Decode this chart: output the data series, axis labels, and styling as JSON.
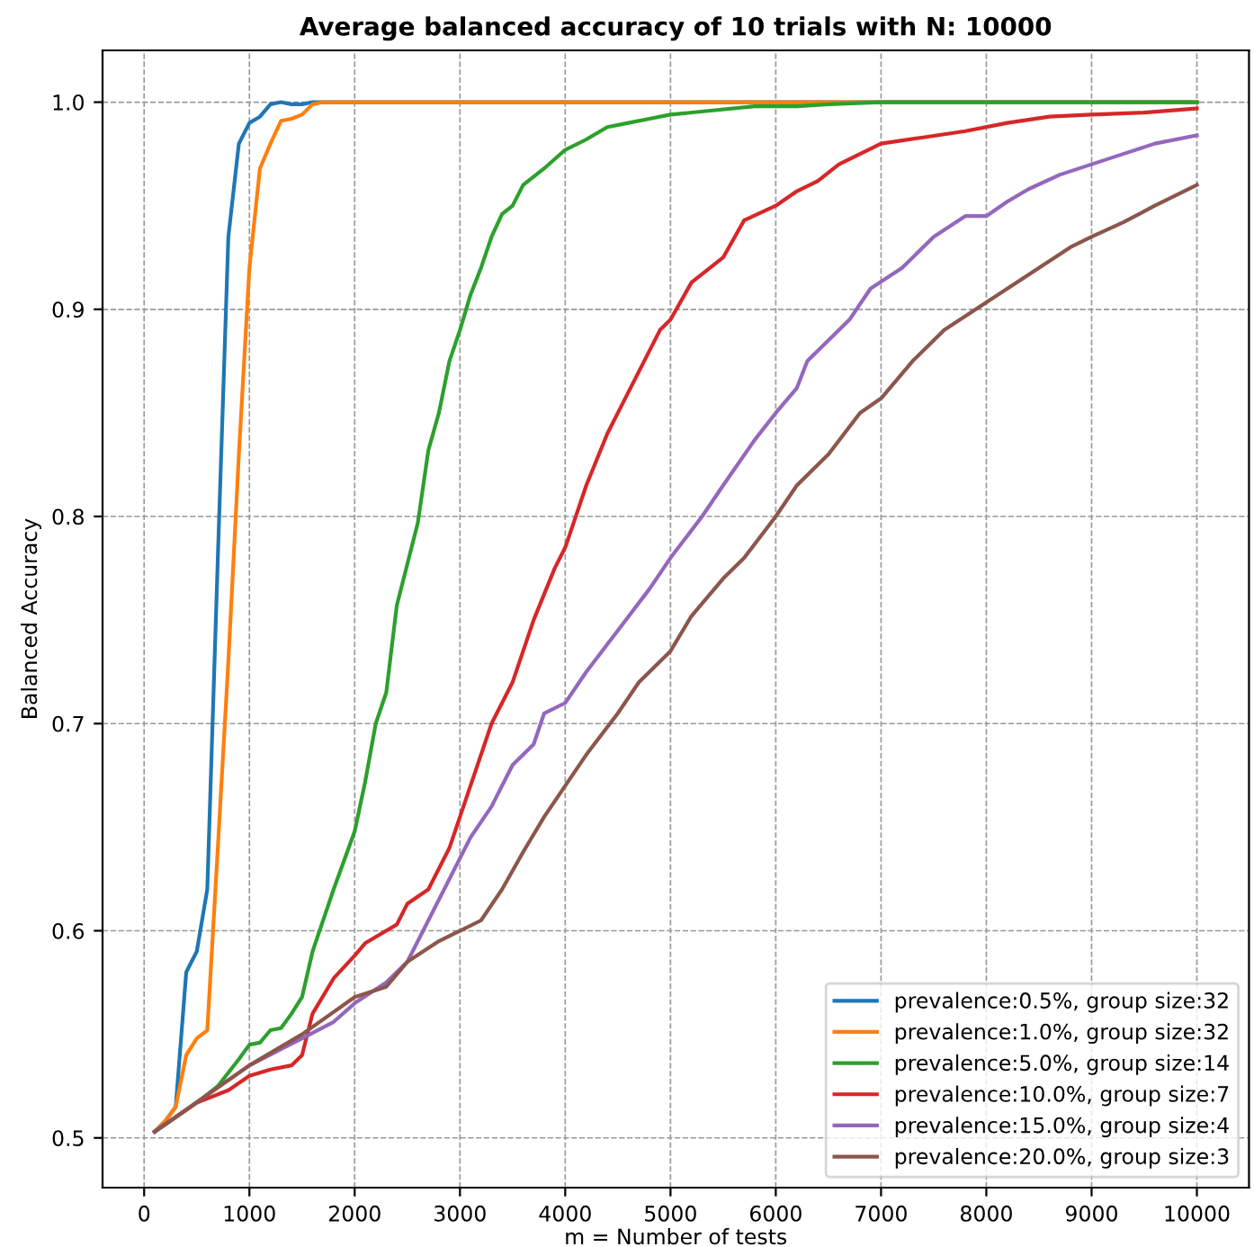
{
  "chart_data": {
    "type": "line",
    "title": "Average balanced accuracy of 10 trials with N: 10000",
    "xlabel": "m = Number of tests",
    "ylabel": "Balanced Accuracy",
    "xlim": [
      -395,
      10495
    ],
    "ylim": [
      0.476,
      1.025
    ],
    "xticks": [
      0,
      1000,
      2000,
      3000,
      4000,
      5000,
      6000,
      7000,
      8000,
      9000,
      10000
    ],
    "yticks": [
      {
        "value": 0.5,
        "label": "0.5"
      },
      {
        "value": 0.6,
        "label": "0.6"
      },
      {
        "value": 0.7,
        "label": "0.7"
      },
      {
        "value": 0.8,
        "label": "0.8"
      },
      {
        "value": 0.9,
        "label": "0.9"
      },
      {
        "value": 1.0,
        "label": "1.0"
      }
    ],
    "grid": true,
    "legend": "bottom right",
    "line_style": "solid",
    "marker": "none",
    "series": [
      {
        "name": "prevalence:0.5%, group size:32",
        "color": "#1f77b4",
        "x": [
          100,
          200,
          300,
          400,
          500,
          600,
          700,
          800,
          900,
          1000,
          1100,
          1200,
          1300,
          1400,
          1500,
          1600,
          1700,
          10000
        ],
        "values": [
          0.503,
          0.508,
          0.515,
          0.58,
          0.59,
          0.62,
          0.78,
          0.935,
          0.98,
          0.99,
          0.993,
          0.999,
          1.0,
          0.999,
          0.999,
          1.0,
          1.0,
          1.0
        ]
      },
      {
        "name": "prevalence:1.0%, group size:32",
        "color": "#ff7f0e",
        "x": [
          100,
          200,
          300,
          400,
          500,
          600,
          700,
          800,
          900,
          1000,
          1100,
          1200,
          1300,
          1400,
          1500,
          1600,
          1700,
          10000
        ],
        "values": [
          0.503,
          0.508,
          0.515,
          0.54,
          0.548,
          0.552,
          0.64,
          0.73,
          0.83,
          0.92,
          0.968,
          0.98,
          0.991,
          0.992,
          0.994,
          0.999,
          1.0,
          1.0
        ]
      },
      {
        "name": "prevalence:5.0%, group size:14",
        "color": "#2ca02c",
        "x": [
          100,
          300,
          500,
          700,
          900,
          1000,
          1100,
          1200,
          1300,
          1400,
          1500,
          1600,
          1800,
          2000,
          2100,
          2200,
          2300,
          2400,
          2600,
          2700,
          2800,
          2900,
          3000,
          3100,
          3200,
          3300,
          3400,
          3500,
          3600,
          3800,
          4000,
          4200,
          4400,
          4600,
          4800,
          5000,
          5400,
          5800,
          6200,
          6500,
          7000,
          10000
        ],
        "values": [
          0.503,
          0.51,
          0.517,
          0.525,
          0.538,
          0.545,
          0.546,
          0.552,
          0.553,
          0.56,
          0.568,
          0.59,
          0.62,
          0.648,
          0.672,
          0.7,
          0.715,
          0.757,
          0.797,
          0.832,
          0.85,
          0.875,
          0.89,
          0.907,
          0.92,
          0.935,
          0.946,
          0.95,
          0.96,
          0.968,
          0.977,
          0.982,
          0.988,
          0.99,
          0.992,
          0.994,
          0.996,
          0.998,
          0.998,
          0.999,
          1.0,
          1.0
        ]
      },
      {
        "name": "prevalence:10.0%, group size:7",
        "color": "#d62728",
        "x": [
          100,
          500,
          800,
          1000,
          1200,
          1400,
          1500,
          1600,
          1800,
          2000,
          2100,
          2300,
          2400,
          2500,
          2700,
          2900,
          3000,
          3200,
          3300,
          3500,
          3700,
          3900,
          4000,
          4200,
          4400,
          4500,
          4700,
          4900,
          5000,
          5200,
          5500,
          5700,
          6000,
          6200,
          6400,
          6600,
          6800,
          7000,
          7400,
          7800,
          8200,
          8600,
          9000,
          9500,
          10000
        ],
        "values": [
          0.503,
          0.517,
          0.523,
          0.53,
          0.533,
          0.535,
          0.54,
          0.56,
          0.577,
          0.588,
          0.594,
          0.6,
          0.603,
          0.613,
          0.62,
          0.64,
          0.655,
          0.685,
          0.7,
          0.72,
          0.75,
          0.775,
          0.785,
          0.815,
          0.84,
          0.85,
          0.87,
          0.89,
          0.895,
          0.913,
          0.925,
          0.943,
          0.95,
          0.957,
          0.962,
          0.97,
          0.975,
          0.98,
          0.983,
          0.986,
          0.99,
          0.993,
          0.994,
          0.995,
          0.997
        ]
      },
      {
        "name": "prevalence:15.0%, group size:4",
        "color": "#9467bd",
        "x": [
          100,
          1000,
          1500,
          1800,
          2000,
          2300,
          2500,
          2700,
          2900,
          3100,
          3300,
          3500,
          3700,
          3800,
          4000,
          4200,
          4500,
          4800,
          5000,
          5300,
          5500,
          5800,
          6000,
          6200,
          6300,
          6500,
          6700,
          6900,
          7200,
          7500,
          7800,
          8000,
          8200,
          8400,
          8700,
          9000,
          9300,
          9600,
          10000
        ],
        "values": [
          0.503,
          0.535,
          0.548,
          0.556,
          0.565,
          0.575,
          0.585,
          0.605,
          0.625,
          0.645,
          0.66,
          0.68,
          0.69,
          0.705,
          0.71,
          0.725,
          0.745,
          0.765,
          0.78,
          0.8,
          0.815,
          0.837,
          0.85,
          0.862,
          0.875,
          0.885,
          0.895,
          0.91,
          0.92,
          0.935,
          0.945,
          0.945,
          0.952,
          0.958,
          0.965,
          0.97,
          0.975,
          0.98,
          0.984
        ]
      },
      {
        "name": "prevalence:20.0%, group size:3",
        "color": "#8c564b",
        "x": [
          100,
          1000,
          1500,
          2000,
          2300,
          2500,
          2800,
          3000,
          3200,
          3400,
          3600,
          3800,
          4000,
          4200,
          4500,
          4700,
          5000,
          5200,
          5500,
          5700,
          6000,
          6200,
          6500,
          6800,
          7000,
          7300,
          7600,
          7900,
          8200,
          8500,
          8800,
          9000,
          9300,
          9600,
          9800,
          10000
        ],
        "values": [
          0.503,
          0.535,
          0.55,
          0.568,
          0.573,
          0.585,
          0.595,
          0.6,
          0.605,
          0.62,
          0.638,
          0.655,
          0.67,
          0.685,
          0.705,
          0.72,
          0.735,
          0.752,
          0.77,
          0.78,
          0.8,
          0.815,
          0.83,
          0.85,
          0.857,
          0.875,
          0.89,
          0.9,
          0.91,
          0.92,
          0.93,
          0.935,
          0.942,
          0.95,
          0.955,
          0.96
        ]
      }
    ]
  }
}
